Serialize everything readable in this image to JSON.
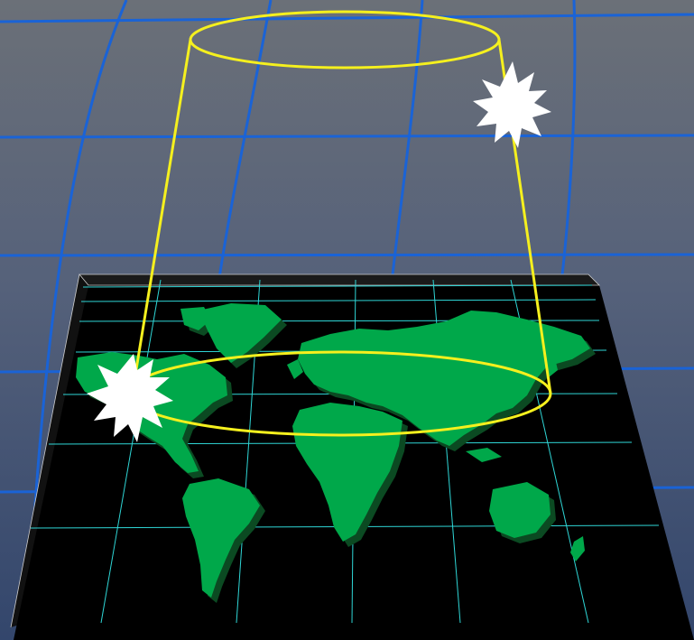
{
  "scene": {
    "description_visible_text": "",
    "background_colors": [
      "#6a6f78",
      "#53627c",
      "#34486e"
    ],
    "grid_color": "#1a63d6",
    "map_background": "#000000",
    "map_grid_color": "#2fd6d6",
    "land_color": "#00a84a",
    "land_shadow": "#0b4a22",
    "beam_color": "#f5f01e",
    "burst_color": "#ffffff"
  },
  "icons": {
    "burst_top": "starburst-icon",
    "burst_bottom": "starburst-icon"
  }
}
